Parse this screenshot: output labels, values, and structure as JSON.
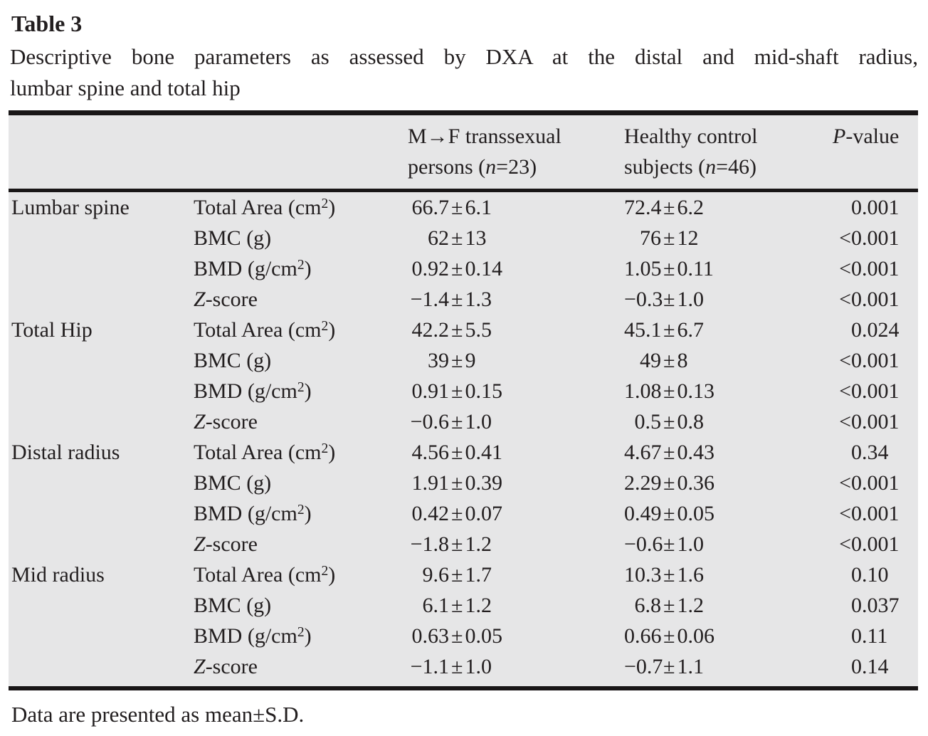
{
  "page": {
    "title": "Table 3",
    "caption_line1": "Descriptive bone parameters as assessed by DXA at the distal and mid-shaft radius,",
    "caption_line2": "lumbar spine and total hip",
    "footnote": "Data are presented as mean±S.D."
  },
  "colors": {
    "table_background": "#e6e6e7",
    "rule": "#191617",
    "text": "#221e1f"
  },
  "table": {
    "header": {
      "mf_line1": "M→F transsexual",
      "mf_line2_pre": "persons (",
      "mf_line2_n": "n",
      "mf_line2_post": "=23)",
      "hc_line1": "Healthy control",
      "hc_line2_pre": "subjects (",
      "hc_line2_n": "n",
      "hc_line2_post": "=46)",
      "p_italic": "P",
      "p_rest": "-value"
    },
    "groups": [
      "Lumbar spine",
      "Total Hip",
      "Distal radius",
      "Mid radius"
    ],
    "rows": [
      {
        "group": "Lumbar spine",
        "param": {
          "text": "Total Area (cm",
          "sup": "2",
          "post": ")"
        },
        "mf": "66.7±6.1",
        "hc": "72.4±6.2",
        "p": "0.001"
      },
      {
        "group": "",
        "param": {
          "text": "BMC (g)"
        },
        "mf": "62±13",
        "hc": "76±12",
        "p": "<0.001"
      },
      {
        "group": "",
        "param": {
          "text": "BMD (g/cm",
          "sup": "2",
          "post": ")"
        },
        "mf": "0.92±0.14",
        "hc": "1.05±0.11",
        "p": "<0.001"
      },
      {
        "group": "",
        "param": {
          "it": "Z",
          "text": "-score"
        },
        "mf": "−1.4±1.3",
        "hc": "−0.3±1.0",
        "p": "<0.001"
      },
      {
        "group": "Total Hip",
        "param": {
          "text": "Total Area (cm",
          "sup": "2",
          "post": ")"
        },
        "mf": "42.2±5.5",
        "hc": "45.1±6.7",
        "p": "0.024"
      },
      {
        "group": "",
        "param": {
          "text": "BMC (g)"
        },
        "mf": "39±9",
        "hc": "49±8",
        "p": "<0.001"
      },
      {
        "group": "",
        "param": {
          "text": "BMD (g/cm",
          "sup": "2",
          "post": ")"
        },
        "mf": "0.91±0.15",
        "hc": "1.08±0.13",
        "p": "<0.001"
      },
      {
        "group": "",
        "param": {
          "it": "Z",
          "text": "-score"
        },
        "mf": "−0.6±1.0",
        "hc": "0.5±0.8",
        "p": "<0.001"
      },
      {
        "group": "Distal radius",
        "param": {
          "text": "Total Area (cm",
          "sup": "2",
          "post": ")"
        },
        "mf": "4.56±0.41",
        "hc": "4.67±0.43",
        "p": "0.34"
      },
      {
        "group": "",
        "param": {
          "text": "BMC (g)"
        },
        "mf": "1.91±0.39",
        "hc": "2.29±0.36",
        "p": "<0.001"
      },
      {
        "group": "",
        "param": {
          "text": "BMD (g/cm",
          "sup": "2",
          "post": ")"
        },
        "mf": "0.42±0.07",
        "hc": "0.49±0.05",
        "p": "<0.001"
      },
      {
        "group": "",
        "param": {
          "it": "Z",
          "text": "-score"
        },
        "mf": "−1.8±1.2",
        "hc": "−0.6±1.0",
        "p": "<0.001"
      },
      {
        "group": "Mid radius",
        "param": {
          "text": "Total Area (cm",
          "sup": "2",
          "post": ")"
        },
        "mf": "9.6±1.7",
        "hc": "10.3±1.6",
        "p": "0.10"
      },
      {
        "group": "",
        "param": {
          "text": "BMC (g)"
        },
        "mf": "6.1±1.2",
        "hc": "6.8±1.2",
        "p": "0.037"
      },
      {
        "group": "",
        "param": {
          "text": "BMD (g/cm",
          "sup": "2",
          "post": ")"
        },
        "mf": "0.63±0.05",
        "hc": "0.66±0.06",
        "p": "0.11"
      },
      {
        "group": "",
        "param": {
          "it": "Z",
          "text": "-score"
        },
        "mf": "−1.1±1.0",
        "hc": "−0.7±1.1",
        "p": "0.14"
      }
    ]
  }
}
